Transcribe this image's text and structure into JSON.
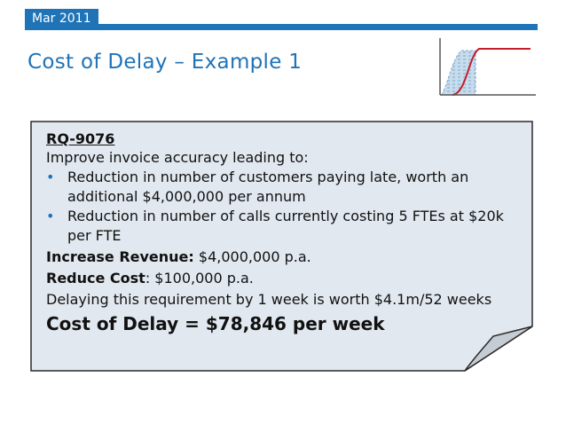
{
  "header": {
    "date": "Mar 2011",
    "title": "Cost of Delay – Example 1"
  },
  "note": {
    "id": "RQ-9076",
    "intro": "Improve invoice accuracy leading to:",
    "bullets": [
      "Reduction in number of customers paying late, worth an additional $4,000,000 per annum",
      "Reduction in number of calls currently costing 5 FTEs at $20k per FTE"
    ],
    "revenue_label": "Increase Revenue:",
    "revenue_value": " $4,000,000 p.a.",
    "cost_label": "Reduce Cost",
    "cost_value": ": $100,000 p.a.",
    "delay_text": "Delaying this requirement by 1 week is worth $4.1m/52 weeks",
    "cost_of_delay": "Cost of Delay = $78,846 per week"
  },
  "colors": {
    "accent": "#1f73b7",
    "note_fill": "#e2e8f0",
    "curve": "#c41e2a",
    "area": "#a9c9e2"
  },
  "icons": {
    "bullet": "•"
  }
}
